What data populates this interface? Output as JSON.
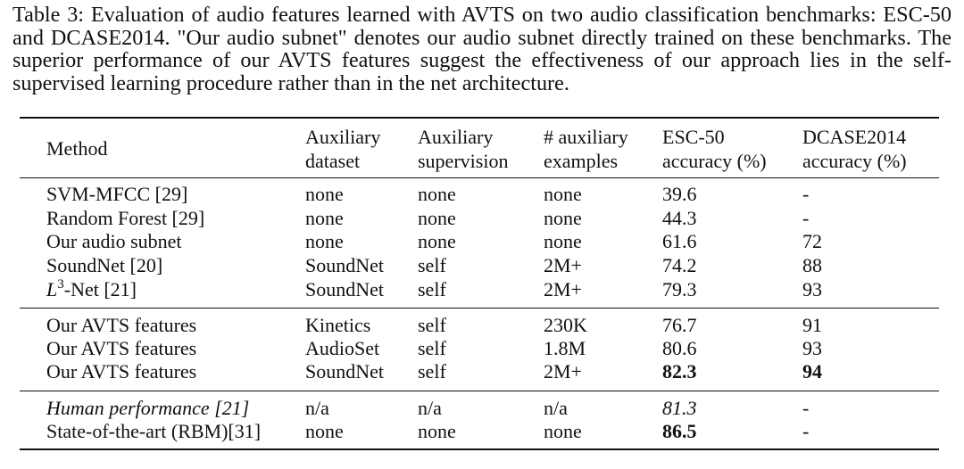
{
  "caption": "Table 3: Evaluation of audio features learned with AVTS on two audio classification benchmarks: ESC-50 and DCASE2014. \"Our audio subnet\" denotes our audio subnet directly trained on these benchmarks.  The superior performance of our AVTS features suggest the effectiveness of our approach lies in the self-supervised learning procedure rather than in the net architecture.",
  "headers": {
    "method": "Method",
    "aux_dataset": [
      "Auxiliary",
      "dataset"
    ],
    "aux_supervision": [
      "Auxiliary",
      "supervision"
    ],
    "aux_examples": [
      "# auxiliary",
      "examples"
    ],
    "esc": [
      "ESC-50",
      "accuracy (%)"
    ],
    "dcase": [
      "DCASE2014",
      "accuracy (%)"
    ]
  },
  "rows": [
    {
      "method": "SVM-MFCC [29]",
      "dataset": "none",
      "supervision": "none",
      "examples": "none",
      "esc": "39.6",
      "dcase": "-"
    },
    {
      "method": "Random Forest [29]",
      "dataset": "none",
      "supervision": "none",
      "examples": "none",
      "esc": "44.3",
      "dcase": "-"
    },
    {
      "method": "Our audio subnet",
      "dataset": "none",
      "supervision": "none",
      "examples": "none",
      "esc": "61.6",
      "dcase": "72"
    },
    {
      "method": "SoundNet [20]",
      "dataset": "SoundNet",
      "supervision": "self",
      "examples": "2M+",
      "esc": "74.2",
      "dcase": "88"
    },
    {
      "method_prefix": "L",
      "method_sup": "3",
      "method": "-Net [21]",
      "dataset": "SoundNet",
      "supervision": "self",
      "examples": "2M+",
      "esc": "79.3",
      "dcase": "93"
    },
    {
      "method": "Our AVTS features",
      "dataset": "Kinetics",
      "supervision": "self",
      "examples": "230K",
      "esc": "76.7",
      "dcase": "91"
    },
    {
      "method": "Our AVTS features",
      "dataset": "AudioSet",
      "supervision": "self",
      "examples": "1.8M",
      "esc": "80.6",
      "dcase": "93"
    },
    {
      "method": "Our AVTS features",
      "dataset": "SoundNet",
      "supervision": "self",
      "examples": "2M+",
      "esc": "82.3",
      "dcase": "94"
    },
    {
      "method": "Human performance [21]",
      "dataset": "n/a",
      "supervision": "n/a",
      "examples": "n/a",
      "esc": "81.3",
      "dcase": "-"
    },
    {
      "method": "State-of-the-art (RBM)[31]",
      "dataset": "none",
      "supervision": "none",
      "examples": "none",
      "esc": "86.5",
      "dcase": "-"
    }
  ]
}
